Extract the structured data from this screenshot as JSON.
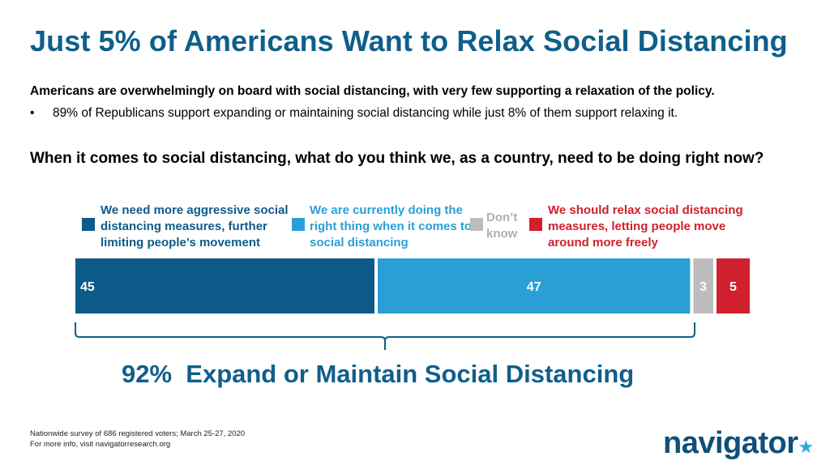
{
  "title": "Just 5% of Americans Want to Relax Social Distancing",
  "summary": "Americans are overwhelmingly on board with social distancing, with very few supporting a relaxation of the policy.",
  "bullet_symbol": "•",
  "bullet": "89% of Republicans support expanding or maintaining social distancing while just 8% of them support relaxing it.",
  "question": "When it comes to social distancing, what do you think we, as a country, need to be doing right now?",
  "callout": "92%  Expand or Maintain Social Distancing",
  "footnote": {
    "line1": "Nationwide survey of 686 registered voters; March 25-27, 2020",
    "line2": "For more info, visit navigatorresearch.org"
  },
  "logo": {
    "text": "navigator",
    "mark": "★"
  },
  "colors": {
    "title": "#0f5f8a",
    "more_aggressive": "#0d5b89",
    "right_thing": "#2a9fd6",
    "dont_know": "#bdbdbd",
    "relax": "#d0202e"
  },
  "chart_data": {
    "type": "bar",
    "orientation": "horizontal-stacked",
    "title": "When it comes to social distancing, what do you think we, as a country, need to be doing right now?",
    "series": [
      {
        "name": "We need more aggressive social distancing measures, further limiting people’s movement",
        "value": 45,
        "color": "#0d5b89"
      },
      {
        "name": "We are currently doing the right thing when it comes to social distancing",
        "value": 47,
        "color": "#2a9fd6"
      },
      {
        "name": "Don’t know",
        "value": 3,
        "color": "#bdbdbd"
      },
      {
        "name": "We should relax social distancing measures, letting people move around more freely",
        "value": 5,
        "color": "#d0202e"
      }
    ],
    "xlim": [
      0,
      100
    ],
    "grid": false,
    "legend_placement": "top"
  }
}
